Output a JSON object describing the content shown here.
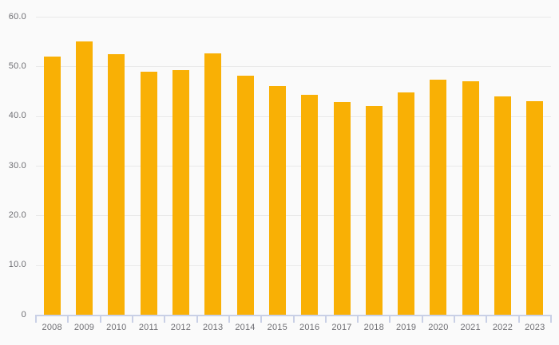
{
  "chart_data": {
    "type": "bar",
    "title": "",
    "xlabel": "",
    "ylabel": "",
    "categories": [
      "2008",
      "2009",
      "2010",
      "2011",
      "2012",
      "2013",
      "2014",
      "2015",
      "2016",
      "2017",
      "2018",
      "2019",
      "2020",
      "2021",
      "2022",
      "2023"
    ],
    "values": [
      52.0,
      55.0,
      52.5,
      49.0,
      49.3,
      52.7,
      48.1,
      46.0,
      44.3,
      42.9,
      42.1,
      44.8,
      47.4,
      47.0,
      44.0,
      43.0
    ],
    "ylim": [
      0,
      60
    ],
    "yticks": [
      0,
      10,
      20,
      30,
      40,
      50,
      60
    ],
    "ytick_labels": [
      "0",
      "10.0",
      "20.0",
      "30.0",
      "40.0",
      "50.0",
      "60.0"
    ],
    "grid": true,
    "legend": false,
    "colors": {
      "bar": "#F9B005",
      "background": "#FAFAFA",
      "gridline": "#E9E9E9",
      "axis": "#C9D0E6",
      "tick_label": "#6E6E73"
    }
  }
}
